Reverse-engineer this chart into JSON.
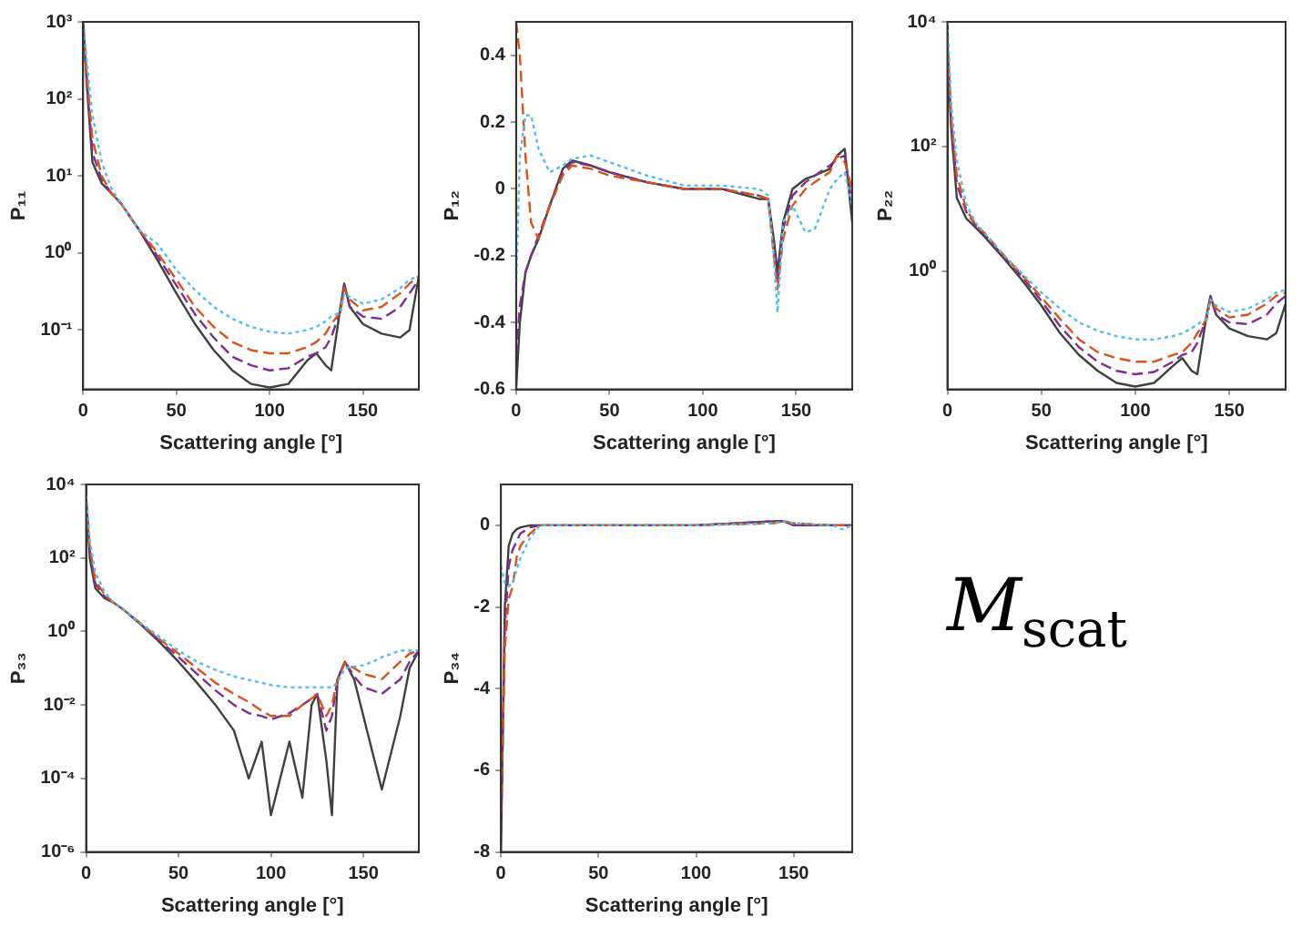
{
  "chart_data": [
    {
      "type": "line",
      "xlabel": "Scattering angle [°]",
      "ylabel": "P₁₁",
      "log": true,
      "marker": "none",
      "xlim": [
        0,
        180
      ],
      "xticks": [
        0,
        50,
        100,
        150
      ],
      "ylim": [
        0.017,
        1000
      ],
      "yticks": [
        {
          "value": 0.1,
          "label": "10⁻¹"
        },
        {
          "value": 1,
          "label": "10⁰"
        },
        {
          "value": 10,
          "label": "10¹"
        },
        {
          "value": 100,
          "label": "10²"
        },
        {
          "value": 1000,
          "label": "10³"
        }
      ],
      "x": [
        0,
        2,
        5,
        10,
        15,
        20,
        30,
        40,
        50,
        60,
        70,
        80,
        90,
        100,
        110,
        120,
        125,
        130,
        133,
        138,
        140,
        143,
        150,
        160,
        170,
        175,
        180
      ],
      "series": [
        {
          "color": "#4dbeee",
          "line_style": "dotted",
          "values": [
            1000,
            300,
            60,
            15,
            7,
            4.5,
            2,
            1.3,
            0.6,
            0.33,
            0.2,
            0.14,
            0.11,
            0.095,
            0.09,
            0.1,
            0.11,
            0.13,
            0.15,
            0.17,
            0.3,
            0.27,
            0.22,
            0.25,
            0.35,
            0.45,
            0.5
          ]
        },
        {
          "color": "#d95319",
          "line_style": "dashed",
          "values": [
            800,
            200,
            30,
            10,
            6,
            4.5,
            2,
            1,
            0.45,
            0.2,
            0.11,
            0.07,
            0.055,
            0.05,
            0.05,
            0.06,
            0.07,
            0.09,
            0.12,
            0.17,
            0.35,
            0.25,
            0.18,
            0.2,
            0.3,
            0.4,
            0.5
          ]
        },
        {
          "color": "#7e2f8e",
          "line_style": "dashed",
          "values": [
            900,
            180,
            20,
            9,
            6,
            4.5,
            2,
            0.9,
            0.38,
            0.16,
            0.08,
            0.045,
            0.035,
            0.03,
            0.032,
            0.045,
            0.05,
            0.06,
            0.08,
            0.18,
            0.38,
            0.2,
            0.15,
            0.14,
            0.2,
            0.3,
            0.45
          ]
        },
        {
          "color": "#404040",
          "line_style": "solid",
          "values": [
            1000,
            150,
            15,
            8,
            6,
            4.5,
            2,
            0.8,
            0.3,
            0.12,
            0.055,
            0.03,
            0.02,
            0.018,
            0.02,
            0.04,
            0.05,
            0.035,
            0.03,
            0.2,
            0.4,
            0.2,
            0.12,
            0.09,
            0.08,
            0.1,
            0.5
          ]
        }
      ]
    },
    {
      "type": "line",
      "xlabel": "Scattering angle [°]",
      "ylabel": "P₁₂",
      "marker": "none",
      "xlim": [
        0,
        180
      ],
      "xticks": [
        0,
        50,
        100,
        150
      ],
      "ylim": [
        -0.6,
        0.5
      ],
      "yticks": [
        -0.6,
        -0.4,
        -0.2,
        0,
        0.2,
        0.4
      ],
      "x": [
        0,
        2,
        5,
        8,
        12,
        18,
        25,
        30,
        40,
        50,
        70,
        90,
        110,
        130,
        135,
        138,
        140,
        143,
        148,
        155,
        160,
        168,
        172,
        176,
        180
      ],
      "series": [
        {
          "color": "#4dbeee",
          "line_style": "dotted",
          "values": [
            -0.3,
            0.1,
            0.22,
            0.22,
            0.12,
            0.05,
            0.07,
            0.09,
            0.1,
            0.08,
            0.04,
            0.01,
            0.01,
            0,
            -0.02,
            -0.2,
            -0.37,
            -0.1,
            -0.05,
            -0.13,
            -0.12,
            0,
            0.03,
            0.05,
            -0.05
          ]
        },
        {
          "color": "#d95319",
          "line_style": "dashed",
          "values": [
            0.5,
            0.4,
            0.1,
            -0.1,
            -0.15,
            -0.05,
            0.04,
            0.07,
            0.06,
            0.04,
            0.02,
            0,
            0,
            -0.02,
            -0.03,
            -0.2,
            -0.3,
            -0.15,
            -0.05,
            0,
            0.02,
            0.05,
            0.1,
            0.08,
            0
          ]
        },
        {
          "color": "#7e2f8e",
          "line_style": "dashed",
          "values": [
            -0.5,
            -0.35,
            -0.25,
            -0.2,
            -0.14,
            -0.05,
            0.05,
            0.08,
            0.07,
            0.05,
            0.02,
            0,
            0,
            -0.02,
            -0.03,
            -0.18,
            -0.28,
            -0.12,
            -0.02,
            0.02,
            0.04,
            0.07,
            0.09,
            0.1,
            -0.05
          ]
        },
        {
          "color": "#404040",
          "line_style": "solid",
          "values": [
            -0.6,
            -0.4,
            -0.25,
            -0.2,
            -0.15,
            -0.05,
            0.06,
            0.085,
            0.07,
            0.05,
            0.02,
            0,
            0,
            -0.03,
            -0.03,
            -0.15,
            -0.25,
            -0.1,
            0,
            0.03,
            0.04,
            0.06,
            0.1,
            0.12,
            -0.1
          ]
        }
      ]
    },
    {
      "type": "line",
      "xlabel": "Scattering angle [°]",
      "ylabel": "P₂₂",
      "log": true,
      "marker": "none",
      "xlim": [
        0,
        180
      ],
      "xticks": [
        0,
        50,
        100,
        150
      ],
      "ylim": [
        0.0126,
        10000
      ],
      "yticks": [
        {
          "value": 1,
          "label": "10⁰"
        },
        {
          "value": 100,
          "label": "10²"
        },
        {
          "value": 10000,
          "label": "10⁴"
        }
      ],
      "x": [
        0,
        2,
        5,
        10,
        15,
        20,
        30,
        40,
        50,
        60,
        70,
        80,
        90,
        100,
        110,
        120,
        125,
        130,
        133,
        138,
        140,
        143,
        150,
        160,
        170,
        175,
        180
      ],
      "series": [
        {
          "color": "#4dbeee",
          "line_style": "dotted",
          "values": [
            10000,
            500,
            60,
            12,
            6,
            4,
            1.8,
            0.9,
            0.45,
            0.25,
            0.15,
            0.11,
            0.09,
            0.08,
            0.08,
            0.09,
            0.1,
            0.12,
            0.14,
            0.17,
            0.35,
            0.28,
            0.22,
            0.25,
            0.35,
            0.45,
            0.5
          ]
        },
        {
          "color": "#d95319",
          "line_style": "dashed",
          "values": [
            6000,
            300,
            35,
            10,
            5.5,
            4,
            1.8,
            0.85,
            0.38,
            0.17,
            0.08,
            0.05,
            0.04,
            0.035,
            0.035,
            0.045,
            0.05,
            0.07,
            0.1,
            0.17,
            0.35,
            0.25,
            0.18,
            0.2,
            0.3,
            0.4,
            0.45
          ]
        },
        {
          "color": "#7e2f8e",
          "line_style": "dashed",
          "values": [
            5000,
            250,
            25,
            9,
            5.5,
            3.8,
            1.7,
            0.8,
            0.33,
            0.13,
            0.06,
            0.035,
            0.025,
            0.022,
            0.024,
            0.035,
            0.045,
            0.05,
            0.07,
            0.18,
            0.38,
            0.2,
            0.15,
            0.14,
            0.2,
            0.3,
            0.4
          ]
        },
        {
          "color": "#404040",
          "line_style": "solid",
          "values": [
            3000,
            200,
            15,
            7,
            5,
            3.5,
            1.6,
            0.7,
            0.28,
            0.1,
            0.045,
            0.025,
            0.016,
            0.014,
            0.016,
            0.03,
            0.04,
            0.025,
            0.022,
            0.2,
            0.4,
            0.2,
            0.12,
            0.09,
            0.08,
            0.1,
            0.3
          ]
        }
      ]
    },
    {
      "type": "line",
      "xlabel": "Scattering angle [°]",
      "ylabel": "P₃₃",
      "log": true,
      "marker": "none",
      "xlim": [
        0,
        180
      ],
      "xticks": [
        0,
        50,
        100,
        150
      ],
      "ylim": [
        1e-06,
        10000
      ],
      "yticks": [
        {
          "value": 1e-06,
          "label": "10⁻⁶"
        },
        {
          "value": 0.0001,
          "label": "10⁻⁴"
        },
        {
          "value": 0.01,
          "label": "10⁻²"
        },
        {
          "value": 1,
          "label": "10⁰"
        },
        {
          "value": 100,
          "label": "10²"
        },
        {
          "value": 10000,
          "label": "10⁴"
        }
      ],
      "x": [
        0,
        2,
        5,
        10,
        15,
        20,
        30,
        40,
        50,
        60,
        70,
        80,
        88,
        95,
        100,
        110,
        117,
        122,
        125,
        130,
        133,
        136,
        140,
        145,
        150,
        155,
        160,
        170,
        175,
        180
      ],
      "series": [
        {
          "color": "#4dbeee",
          "line_style": "dotted",
          "values": [
            5000,
            300,
            40,
            12,
            6,
            4,
            1.6,
            0.7,
            0.3,
            0.15,
            0.09,
            0.06,
            0.048,
            0.04,
            0.035,
            0.03,
            0.03,
            0.03,
            0.03,
            0.03,
            0.03,
            0.04,
            0.1,
            0.11,
            0.12,
            0.15,
            0.2,
            0.3,
            0.3,
            0.3
          ]
        },
        {
          "color": "#d95319",
          "line_style": "dashed",
          "values": [
            3000,
            200,
            25,
            10,
            6,
            4,
            1.6,
            0.6,
            0.25,
            0.1,
            0.04,
            0.02,
            0.012,
            0.007,
            0.005,
            0.005,
            0.01,
            0.015,
            0.02,
            0.005,
            0.01,
            0.05,
            0.14,
            0.1,
            0.07,
            0.06,
            0.05,
            0.15,
            0.25,
            0.3
          ]
        },
        {
          "color": "#7e2f8e",
          "line_style": "dashed",
          "values": [
            4000,
            150,
            20,
            9,
            6,
            4,
            1.5,
            0.55,
            0.2,
            0.07,
            0.025,
            0.01,
            0.006,
            0.005,
            0.004,
            0.006,
            0.01,
            0.015,
            0.02,
            0.002,
            0.005,
            0.05,
            0.15,
            0.06,
            0.03,
            0.025,
            0.02,
            0.05,
            0.15,
            0.3
          ]
        },
        {
          "color": "#404040",
          "line_style": "solid",
          "values": [
            5000,
            100,
            15,
            8,
            6,
            4,
            1.5,
            0.5,
            0.15,
            0.04,
            0.01,
            0.002,
            0.0001,
            0.001,
            1e-05,
            0.001,
            3e-05,
            0.01,
            0.02,
            0.0003,
            1e-05,
            0.05,
            0.15,
            0.05,
            0.005,
            0.0005,
            5e-05,
            0.005,
            0.1,
            0.3
          ]
        }
      ]
    },
    {
      "type": "line",
      "xlabel": "Scattering angle [°]",
      "ylabel": "P₃₄",
      "marker": "none",
      "xlim": [
        0,
        180
      ],
      "xticks": [
        0,
        50,
        100,
        150
      ],
      "ylim": [
        -8,
        1
      ],
      "yticks": [
        -8,
        -6,
        -4,
        -2,
        0
      ],
      "x": [
        0,
        1,
        2,
        4,
        6,
        8,
        10,
        15,
        20,
        50,
        100,
        140,
        145,
        150,
        170,
        175,
        180
      ],
      "series": [
        {
          "color": "#4dbeee",
          "line_style": "dotted",
          "values": [
            -1,
            -1.2,
            -1.4,
            -1.5,
            -1.4,
            -1.1,
            -0.8,
            -0.3,
            0,
            0,
            0,
            0.05,
            0.1,
            0.05,
            0,
            -0.1,
            0
          ]
        },
        {
          "color": "#d95319",
          "line_style": "dashed",
          "values": [
            -7,
            -5,
            -3,
            -1.8,
            -1.5,
            -0.8,
            -0.5,
            -0.2,
            0,
            0,
            0,
            0.05,
            0.1,
            0.05,
            0,
            0,
            0
          ]
        },
        {
          "color": "#7e2f8e",
          "line_style": "dashed",
          "values": [
            -7.5,
            -5,
            -2.5,
            -1,
            -0.6,
            -0.4,
            -0.2,
            -0.05,
            0,
            0,
            0,
            0.1,
            0.1,
            0,
            0,
            0,
            0
          ]
        },
        {
          "color": "#404040",
          "line_style": "solid",
          "values": [
            -8,
            -5,
            -2,
            -0.5,
            -0.2,
            -0.1,
            -0.05,
            0,
            0,
            0,
            0,
            0.1,
            0.1,
            0,
            0,
            0,
            0
          ]
        }
      ]
    },
    {
      "type": "other",
      "title": "M$_{scat}$"
    }
  ]
}
